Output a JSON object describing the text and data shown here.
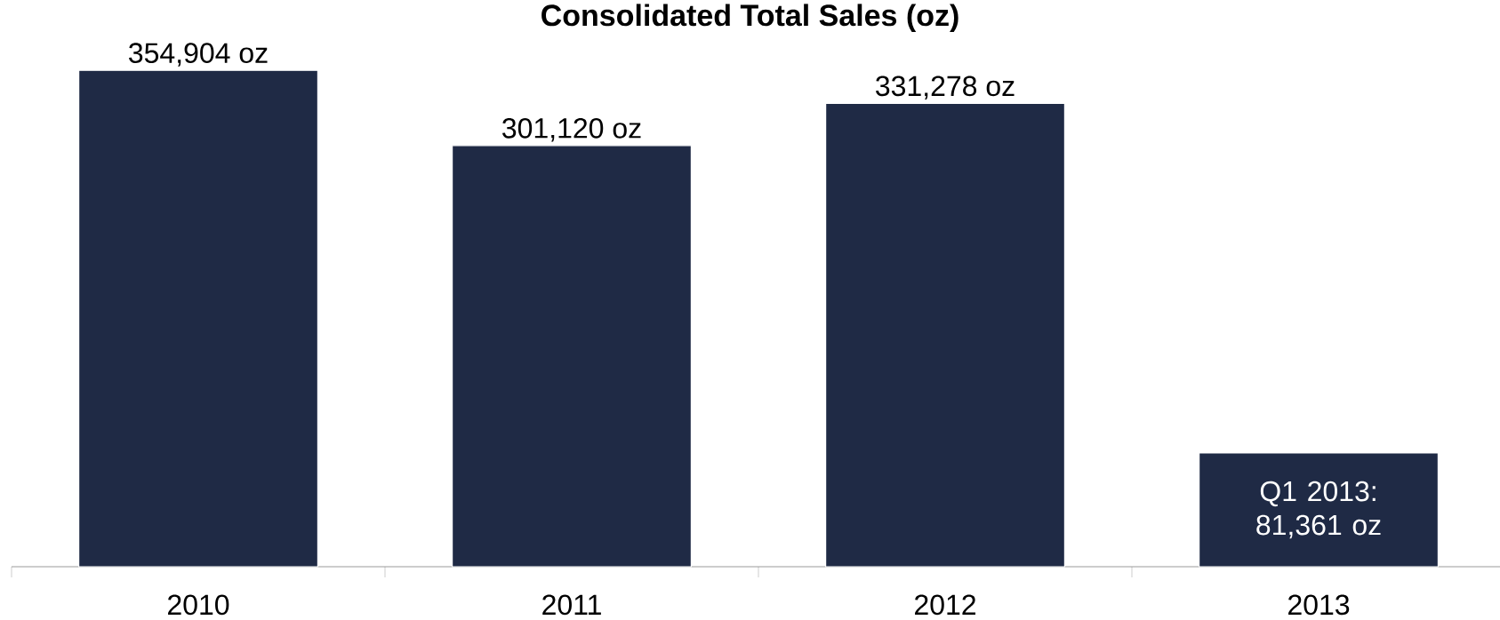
{
  "chart_data": {
    "type": "bar",
    "title": "Consolidated Total Sales (oz)",
    "categories": [
      "2010",
      "2011",
      "2012",
      "2013"
    ],
    "values": [
      354904,
      301120,
      331278,
      81361
    ],
    "color": "#1f2a45",
    "value_labels": [
      "354,904 oz",
      "301,120 oz",
      "331,278 oz",
      "Q1 2013: 81,361 oz"
    ]
  }
}
